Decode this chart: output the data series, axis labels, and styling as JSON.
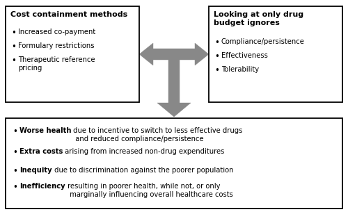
{
  "bg_color": "#ffffff",
  "box_edge_color": "#000000",
  "arrow_color": "#888888",
  "left_box_title": "Cost containment methods",
  "left_box_bullets": [
    "Increased co-payment",
    "Formulary restrictions",
    "Therapeutic reference\npricing"
  ],
  "right_box_title": "Looking at only drug\nbudget ignores",
  "right_box_bullets": [
    "Compliance/persistence",
    "Effectiveness",
    "Tolerability"
  ],
  "bottom_bullets": [
    [
      "Worse health",
      " due to incentive to switch to less effective drugs\n  and reduced compliance/persistence"
    ],
    [
      "Extra costs",
      " arising from increased non-drug expenditures"
    ],
    [
      "Inequity",
      " due to discrimination against the poorer population"
    ],
    [
      "Inefficiency",
      " resulting in poorer health, while not, or only\n  marginally influencing overall healthcare costs"
    ]
  ],
  "fs_title": 8.0,
  "fs_body": 7.2,
  "fs_bullet": 8.5
}
